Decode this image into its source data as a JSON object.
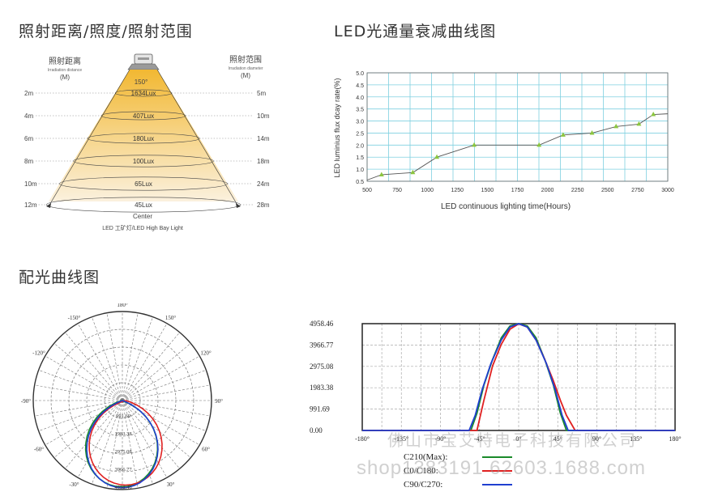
{
  "sections": {
    "cone_title": "照射距离/照度/照射范围",
    "decay_title": "LED光通量衰减曲线图",
    "light_title": "配光曲线图"
  },
  "cone": {
    "left_header": "照射距离",
    "left_header_en": "Irradiation distance",
    "left_unit": "(M)",
    "right_header": "照射范围",
    "right_header_en": "Irradiation diameter",
    "right_unit": "(M)",
    "angle_label": "150°",
    "distances": [
      "2m",
      "4m",
      "6m",
      "8m",
      "10m",
      "12m"
    ],
    "diameters": [
      "5m",
      "10m",
      "14m",
      "18m",
      "24m",
      "28m"
    ],
    "lux": [
      "1634Lux",
      "407Lux",
      "180Lux",
      "100Lux",
      "65Lux",
      "45Lux"
    ],
    "center_label": "Center",
    "product_label": "LED 工矿灯/LED High Bay Light",
    "colors": {
      "top": "#f2b832",
      "bottom": "#fbf1de"
    }
  },
  "chart_data": [
    {
      "type": "line",
      "xlabel": "LED continuous lighting time(Hours)",
      "ylabel": "LED luminius flux dcay rate(%)",
      "xlim": [
        500,
        3000
      ],
      "ylim": [
        0.5,
        5.0
      ],
      "xticks": [
        500,
        750,
        1000,
        1250,
        1500,
        1750,
        2000,
        2250,
        2500,
        2750,
        3000
      ],
      "yticks": [
        0.5,
        1.0,
        1.5,
        2.0,
        2.5,
        3.0,
        3.5,
        4.0,
        4.5,
        5.0
      ],
      "grid": true,
      "line_color": "#555555",
      "marker_color": "#8cc63f",
      "grid_color": "#7fd0e0",
      "series": [
        {
          "x": [
            500,
            620,
            880,
            1080,
            1390,
            1930,
            2130,
            2370,
            2570,
            2760,
            2880,
            3000
          ],
          "y": [
            0.55,
            0.77,
            0.86,
            1.5,
            2.0,
            2.0,
            2.42,
            2.5,
            2.77,
            2.87,
            3.27,
            3.3
          ],
          "markers": [
            false,
            true,
            true,
            true,
            true,
            true,
            true,
            true,
            true,
            true,
            true,
            false
          ]
        }
      ]
    },
    {
      "type": "line",
      "subtype": "polar",
      "angle_labels": [
        "180°",
        "150°",
        "120°",
        "90°",
        "60°",
        "30°",
        "0°",
        "-30°",
        "-60°",
        "-90°",
        "-120°",
        "-150°"
      ],
      "radial_labels": [
        "991.69",
        "1983.38",
        "2975.08",
        "3966.77",
        "4958.46"
      ],
      "series": [
        {
          "name": "C210(Max)",
          "color": "#1a8a2a"
        },
        {
          "name": "C0/C180",
          "color": "#e02020"
        },
        {
          "name": "C90/C270",
          "color": "#1f3fd0"
        }
      ]
    },
    {
      "type": "line",
      "xlim": [
        -180,
        180
      ],
      "ylim": [
        0,
        4958.46
      ],
      "xticks": [
        -180,
        -135,
        -90,
        -45,
        0,
        45,
        90,
        135,
        180
      ],
      "xtick_labels": [
        "-180°",
        "-135°",
        "-90°",
        "-45°",
        "0°",
        "45°",
        "90°",
        "135°",
        "180°"
      ],
      "ytick_labels": [
        "4958.46",
        "3966.77",
        "2975.08",
        "1983.38",
        "991.69",
        "0.00"
      ],
      "yticks": [
        4958.46,
        3966.77,
        2975.08,
        1983.38,
        991.69,
        0
      ],
      "grid": true,
      "series": [
        {
          "name": "C210(Max):",
          "color": "#1a8a2a",
          "x": [
            -180,
            -55,
            -48,
            -40,
            -30,
            -20,
            -10,
            0,
            10,
            20,
            30,
            40,
            48,
            55,
            180
          ],
          "y": [
            0,
            0,
            800,
            2100,
            3300,
            4300,
            4850,
            4958,
            4850,
            4300,
            3300,
            2100,
            800,
            0,
            0
          ]
        },
        {
          "name": "C0/C180:",
          "color": "#e02020",
          "x": [
            -180,
            -48,
            -40,
            -30,
            -20,
            -10,
            0,
            10,
            20,
            30,
            40,
            48,
            55,
            65,
            180
          ],
          "y": [
            0,
            0,
            1400,
            3000,
            4000,
            4700,
            4950,
            4800,
            4200,
            3300,
            2300,
            1400,
            700,
            0,
            0
          ]
        },
        {
          "name": "C90/C270:",
          "color": "#1f3fd0",
          "x": [
            -180,
            -57,
            -50,
            -42,
            -32,
            -20,
            -10,
            0,
            10,
            20,
            32,
            42,
            50,
            57,
            180
          ],
          "y": [
            0,
            0,
            700,
            1900,
            3100,
            4200,
            4800,
            4958,
            4800,
            4200,
            3100,
            1900,
            700,
            0,
            0
          ]
        }
      ]
    }
  ],
  "watermark": {
    "line1": "佛山市宝艾特电子科技有限公司",
    "line2": "shop1383191 62603.1688.com"
  }
}
